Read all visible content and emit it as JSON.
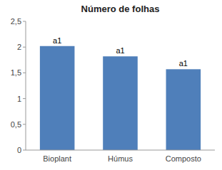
{
  "chart_data": {
    "type": "bar",
    "title": "Número de folhas",
    "categories": [
      "Bioplant",
      "Húmus",
      "Composto"
    ],
    "values": [
      2.02,
      1.82,
      1.57
    ],
    "annotations": [
      "a1",
      "a1",
      "a1"
    ],
    "color": "#4f7fba",
    "ylim": [
      0,
      2.5
    ],
    "yticks": [
      0,
      {
        "value": 0.5,
        "label": "0,5"
      },
      1,
      {
        "value": 1.5,
        "label": "1,5"
      },
      2,
      {
        "value": 2.5,
        "label": "2,5"
      }
    ],
    "grid": false
  }
}
